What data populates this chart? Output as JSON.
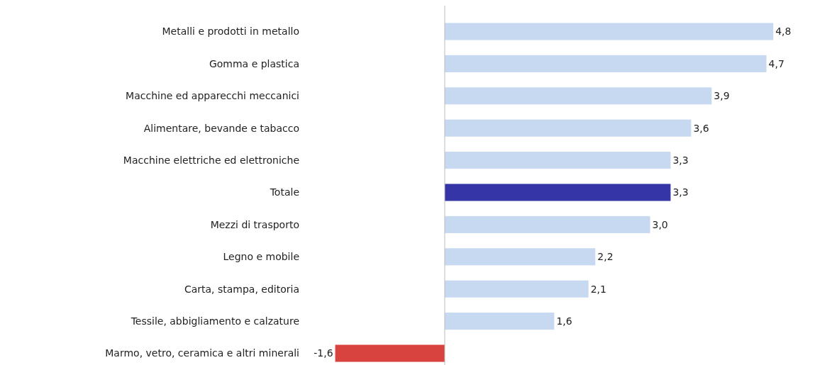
{
  "chart_data": {
    "type": "bar",
    "orientation": "horizontal",
    "categories": [
      "Metalli e prodotti in metallo",
      "Gomma e plastica",
      "Macchine ed apparecchi meccanici",
      "Alimentare, bevande e tabacco",
      "Macchine elettriche ed elettroniche",
      "Totale",
      "Mezzi di trasporto",
      "Legno e mobile",
      "Carta, stampa, editoria",
      "Tessile, abbigliamento e calzature",
      "Marmo, vetro, ceramica e altri minerali"
    ],
    "values": [
      4.8,
      4.7,
      3.9,
      3.6,
      3.3,
      3.3,
      3.0,
      2.2,
      2.1,
      1.6,
      -1.6
    ],
    "value_labels": [
      "4,8",
      "4,7",
      "3,9",
      "3,6",
      "3,3",
      "3,3",
      "3,0",
      "2,2",
      "2,1",
      "1,6",
      "-1,6"
    ],
    "colors": [
      "#c6d9f0",
      "#c6d9f0",
      "#c6d9f0",
      "#c6d9f0",
      "#c6d9f0",
      "#3535a8",
      "#c6d9f0",
      "#c6d9f0",
      "#c6d9f0",
      "#c6d9f0",
      "#d9433f"
    ]
  }
}
